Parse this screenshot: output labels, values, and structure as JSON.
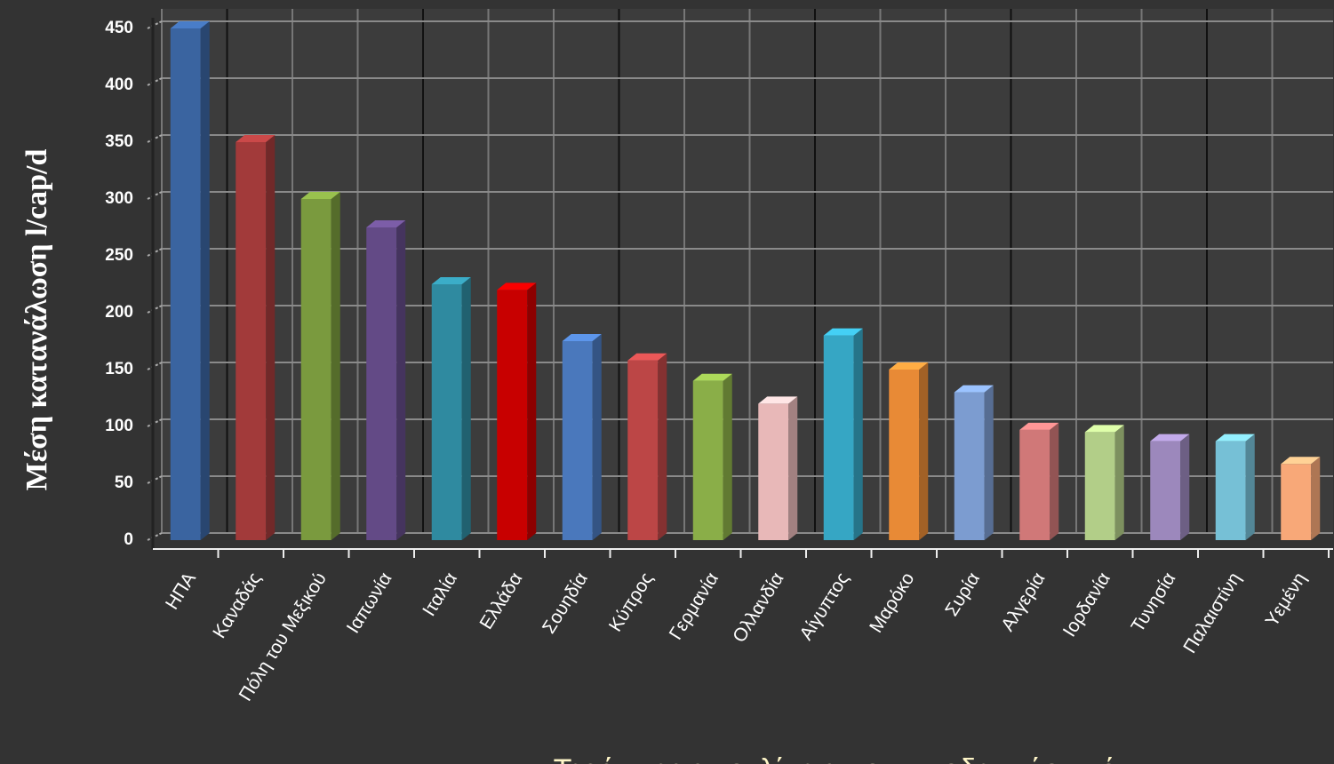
{
  "chart_data": {
    "type": "bar",
    "title": "Τεράστιες αποκλίσεις που υποδεικνύουν ότι",
    "y_label": "Μέση κατανάλωση l/cap/d",
    "categories": [
      "ΗΠΑ",
      "Καναδάς",
      "Πόλη του Μεξικού",
      "Ιαπωνία",
      "Ιταλία",
      "Ελλάδα",
      "Σουηδία",
      "Κύπρος",
      "Γερμανία",
      "Ολλανδία",
      "Αίγυπτος",
      "Μαρόκο",
      "Συρία",
      "Αλγερία",
      "Ιορδανία",
      "Τυνησία",
      "Παλαιστίνη",
      "Υεμένη"
    ],
    "values": [
      450,
      350,
      300,
      275,
      225,
      220,
      175,
      158,
      140,
      120,
      180,
      150,
      130,
      97,
      95,
      87,
      87,
      67
    ],
    "colors": [
      "#3a64a0",
      "#a23a3a",
      "#7a9a3e",
      "#634a86",
      "#2f8aa0",
      "#c80000",
      "#4a78bc",
      "#bc4646",
      "#8aae48",
      "#e8b8b8",
      "#36a6c4",
      "#e88a36",
      "#7c9cd0",
      "#d07878",
      "#b2ce88",
      "#9c88bc",
      "#76c0d6",
      "#f8a878"
    ],
    "ylim": [
      0,
      450
    ],
    "yticks": [
      0,
      50,
      100,
      150,
      200,
      250,
      300,
      350,
      400,
      450
    ],
    "grid": true
  }
}
